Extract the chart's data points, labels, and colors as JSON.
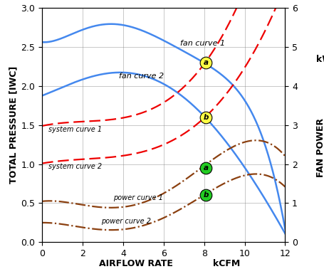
{
  "xlim": [
    0,
    12
  ],
  "ylim_left": [
    0,
    3.0
  ],
  "ylim_right": [
    0,
    6
  ],
  "xlabel1": "AIRFLOW RATE",
  "xlabel2": "kCFM",
  "ylabel_left": "TOTAL PRESSURE [IWC]",
  "ylabel_right": "FAN POWER",
  "ylabel_right2": "kW",
  "xticks": [
    0,
    2,
    4,
    6,
    8,
    10,
    12
  ],
  "yticks_left": [
    0.0,
    0.5,
    1.0,
    1.5,
    2.0,
    2.5,
    3.0
  ],
  "yticks_right": [
    0,
    1,
    2,
    3,
    4,
    5,
    6
  ],
  "fan_curve_1_label": "fan curve 1",
  "fan_curve_2_label": "fan curve 2",
  "system_curve_1_label": "system curve 1",
  "system_curve_2_label": "system curve 2",
  "power_curve_1_label": "power curve 1",
  "power_curve_2_label": "power curve 2",
  "fc1_x": [
    0,
    1,
    2,
    3,
    4,
    5,
    6,
    7,
    8,
    9,
    10,
    11,
    12
  ],
  "fc1_y": [
    2.55,
    2.65,
    2.72,
    2.76,
    2.77,
    2.72,
    2.6,
    2.46,
    2.3,
    2.08,
    1.8,
    1.3,
    0.15
  ],
  "fc2_x": [
    0,
    1,
    2,
    3,
    4,
    5,
    6,
    7,
    8,
    9,
    10,
    11,
    12
  ],
  "fc2_y": [
    1.87,
    2.0,
    2.09,
    2.14,
    2.16,
    2.13,
    2.06,
    1.86,
    1.6,
    1.3,
    0.95,
    0.58,
    0.1
  ],
  "sc1_x": [
    0,
    2,
    4,
    6,
    8,
    10,
    12
  ],
  "sc1_y": [
    1.5,
    1.52,
    1.6,
    1.8,
    2.3,
    3.2,
    4.8
  ],
  "sc2_x": [
    0,
    2,
    4,
    6,
    8,
    10,
    12
  ],
  "sc2_y": [
    1.02,
    1.04,
    1.1,
    1.28,
    1.6,
    2.2,
    3.3
  ],
  "pc1_x": [
    0,
    1,
    2,
    3,
    4,
    5,
    6,
    7,
    8,
    9,
    10,
    11,
    12
  ],
  "pc1_y_kw": [
    1.08,
    0.98,
    0.93,
    0.91,
    0.95,
    1.05,
    1.22,
    1.55,
    1.9,
    2.35,
    2.62,
    2.55,
    2.2
  ],
  "pc2_x": [
    0,
    1,
    2,
    3,
    4,
    5,
    6,
    7,
    8,
    9,
    10,
    11,
    12
  ],
  "pc2_y_kw": [
    0.52,
    0.42,
    0.36,
    0.34,
    0.36,
    0.44,
    0.6,
    0.85,
    1.2,
    1.55,
    1.72,
    1.7,
    1.42
  ],
  "point_a_x": 8.1,
  "point_a_y": 2.3,
  "point_b_x": 8.1,
  "point_b_y": 1.6,
  "point_a_pow_x": 8.1,
  "point_a_pow_y_kw": 1.9,
  "point_b_pow_x": 8.1,
  "point_b_pow_y_kw": 1.2,
  "fan_color": "#4488EE",
  "system_color": "#EE0000",
  "power_color": "#8B4010",
  "point_a_fill": "#FFFF44",
  "point_b_fill": "#22CC22",
  "background_color": "#FFFFFF",
  "label_fontsize": 8,
  "axis_fontsize": 9
}
